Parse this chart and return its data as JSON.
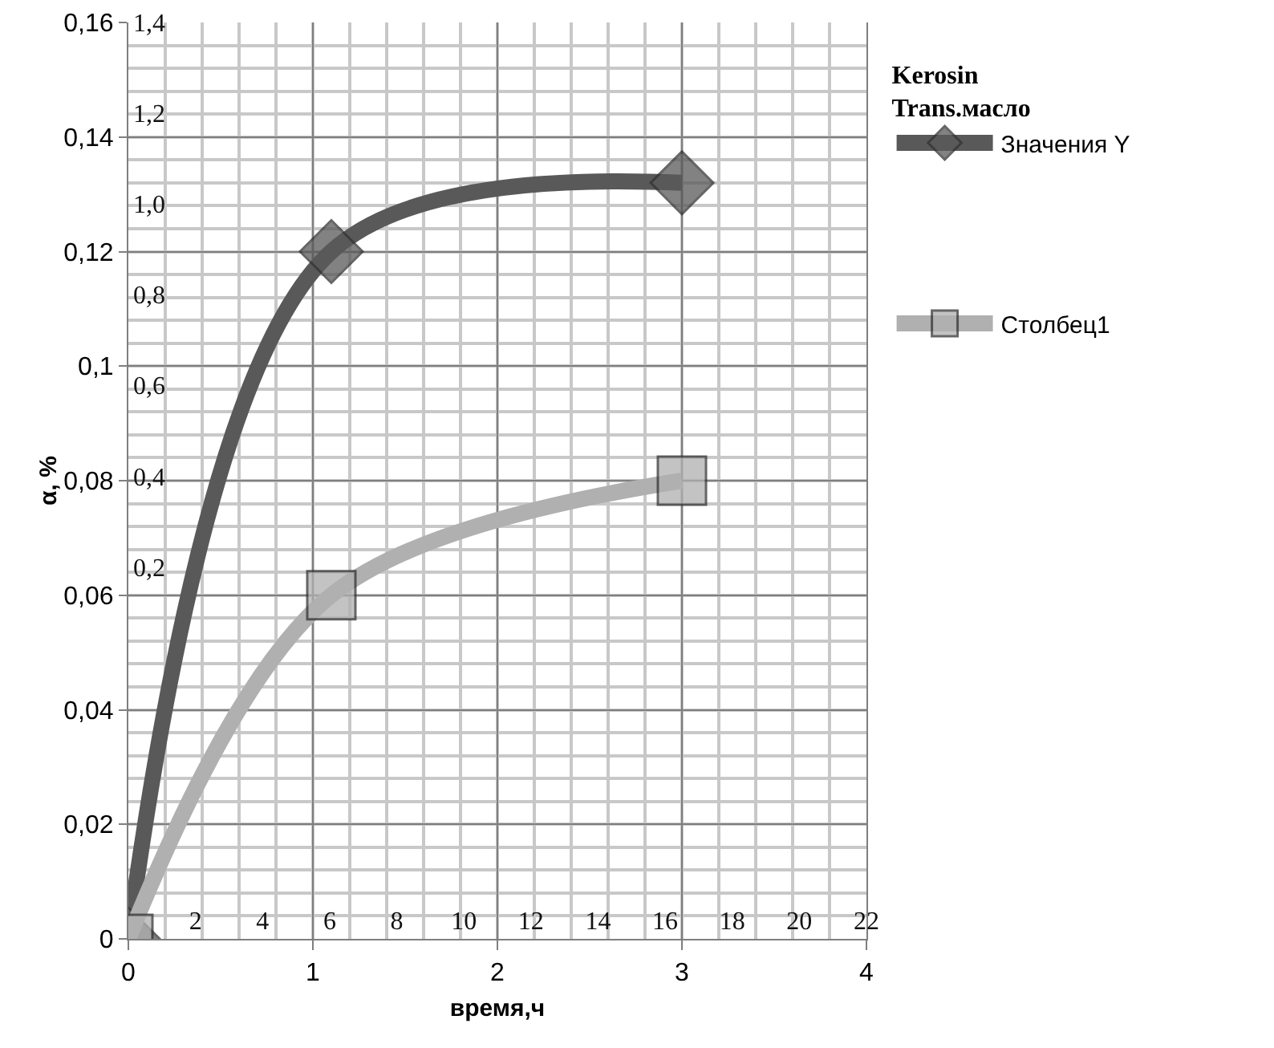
{
  "chart_data": {
    "type": "line",
    "xlabel": "время,ч",
    "ylabel": "α, %",
    "legend_title": "Kerosin\nTrans.масло",
    "xlim": [
      0,
      4
    ],
    "xticks": [
      0,
      1,
      2,
      3,
      4
    ],
    "ylim": [
      0,
      0.16
    ],
    "yticks": [
      {
        "value": 0,
        "label": "0"
      },
      {
        "value": 0.02,
        "label": "0,02"
      },
      {
        "value": 0.04,
        "label": "0,04"
      },
      {
        "value": 0.06,
        "label": "0,06"
      },
      {
        "value": 0.08,
        "label": "0,08"
      },
      {
        "value": 0.1,
        "label": "0,1"
      },
      {
        "value": 0.12,
        "label": "0,12"
      },
      {
        "value": 0.14,
        "label": "0,14"
      },
      {
        "value": 0.16,
        "label": "0,16"
      }
    ],
    "x2lim": [
      0,
      22
    ],
    "x2ticks": [
      2,
      4,
      6,
      8,
      10,
      12,
      14,
      16,
      18,
      20,
      22
    ],
    "y2lim": [
      -0.62,
      1.4
    ],
    "y2ticks": [
      {
        "value": 0.2,
        "label": "0,2"
      },
      {
        "value": 0.4,
        "label": "0,4"
      },
      {
        "value": 0.6,
        "label": "0,6"
      },
      {
        "value": 0.8,
        "label": "0,8"
      },
      {
        "value": 1.0,
        "label": "1,0"
      },
      {
        "value": 1.2,
        "label": "1,2"
      },
      {
        "value": 1.4,
        "label": "1,4"
      }
    ],
    "x": [
      0,
      1.1,
      3
    ],
    "series": [
      {
        "name": "Значения Y",
        "color": "#595959",
        "marker": "diamond",
        "values": [
          0,
          0.12,
          0.132
        ]
      },
      {
        "name": "Столбец1",
        "color": "#b0b0b0",
        "marker": "square",
        "values": [
          0,
          0.06,
          0.08
        ]
      }
    ],
    "grid": true,
    "legend": "right",
    "line_style": "solid"
  }
}
